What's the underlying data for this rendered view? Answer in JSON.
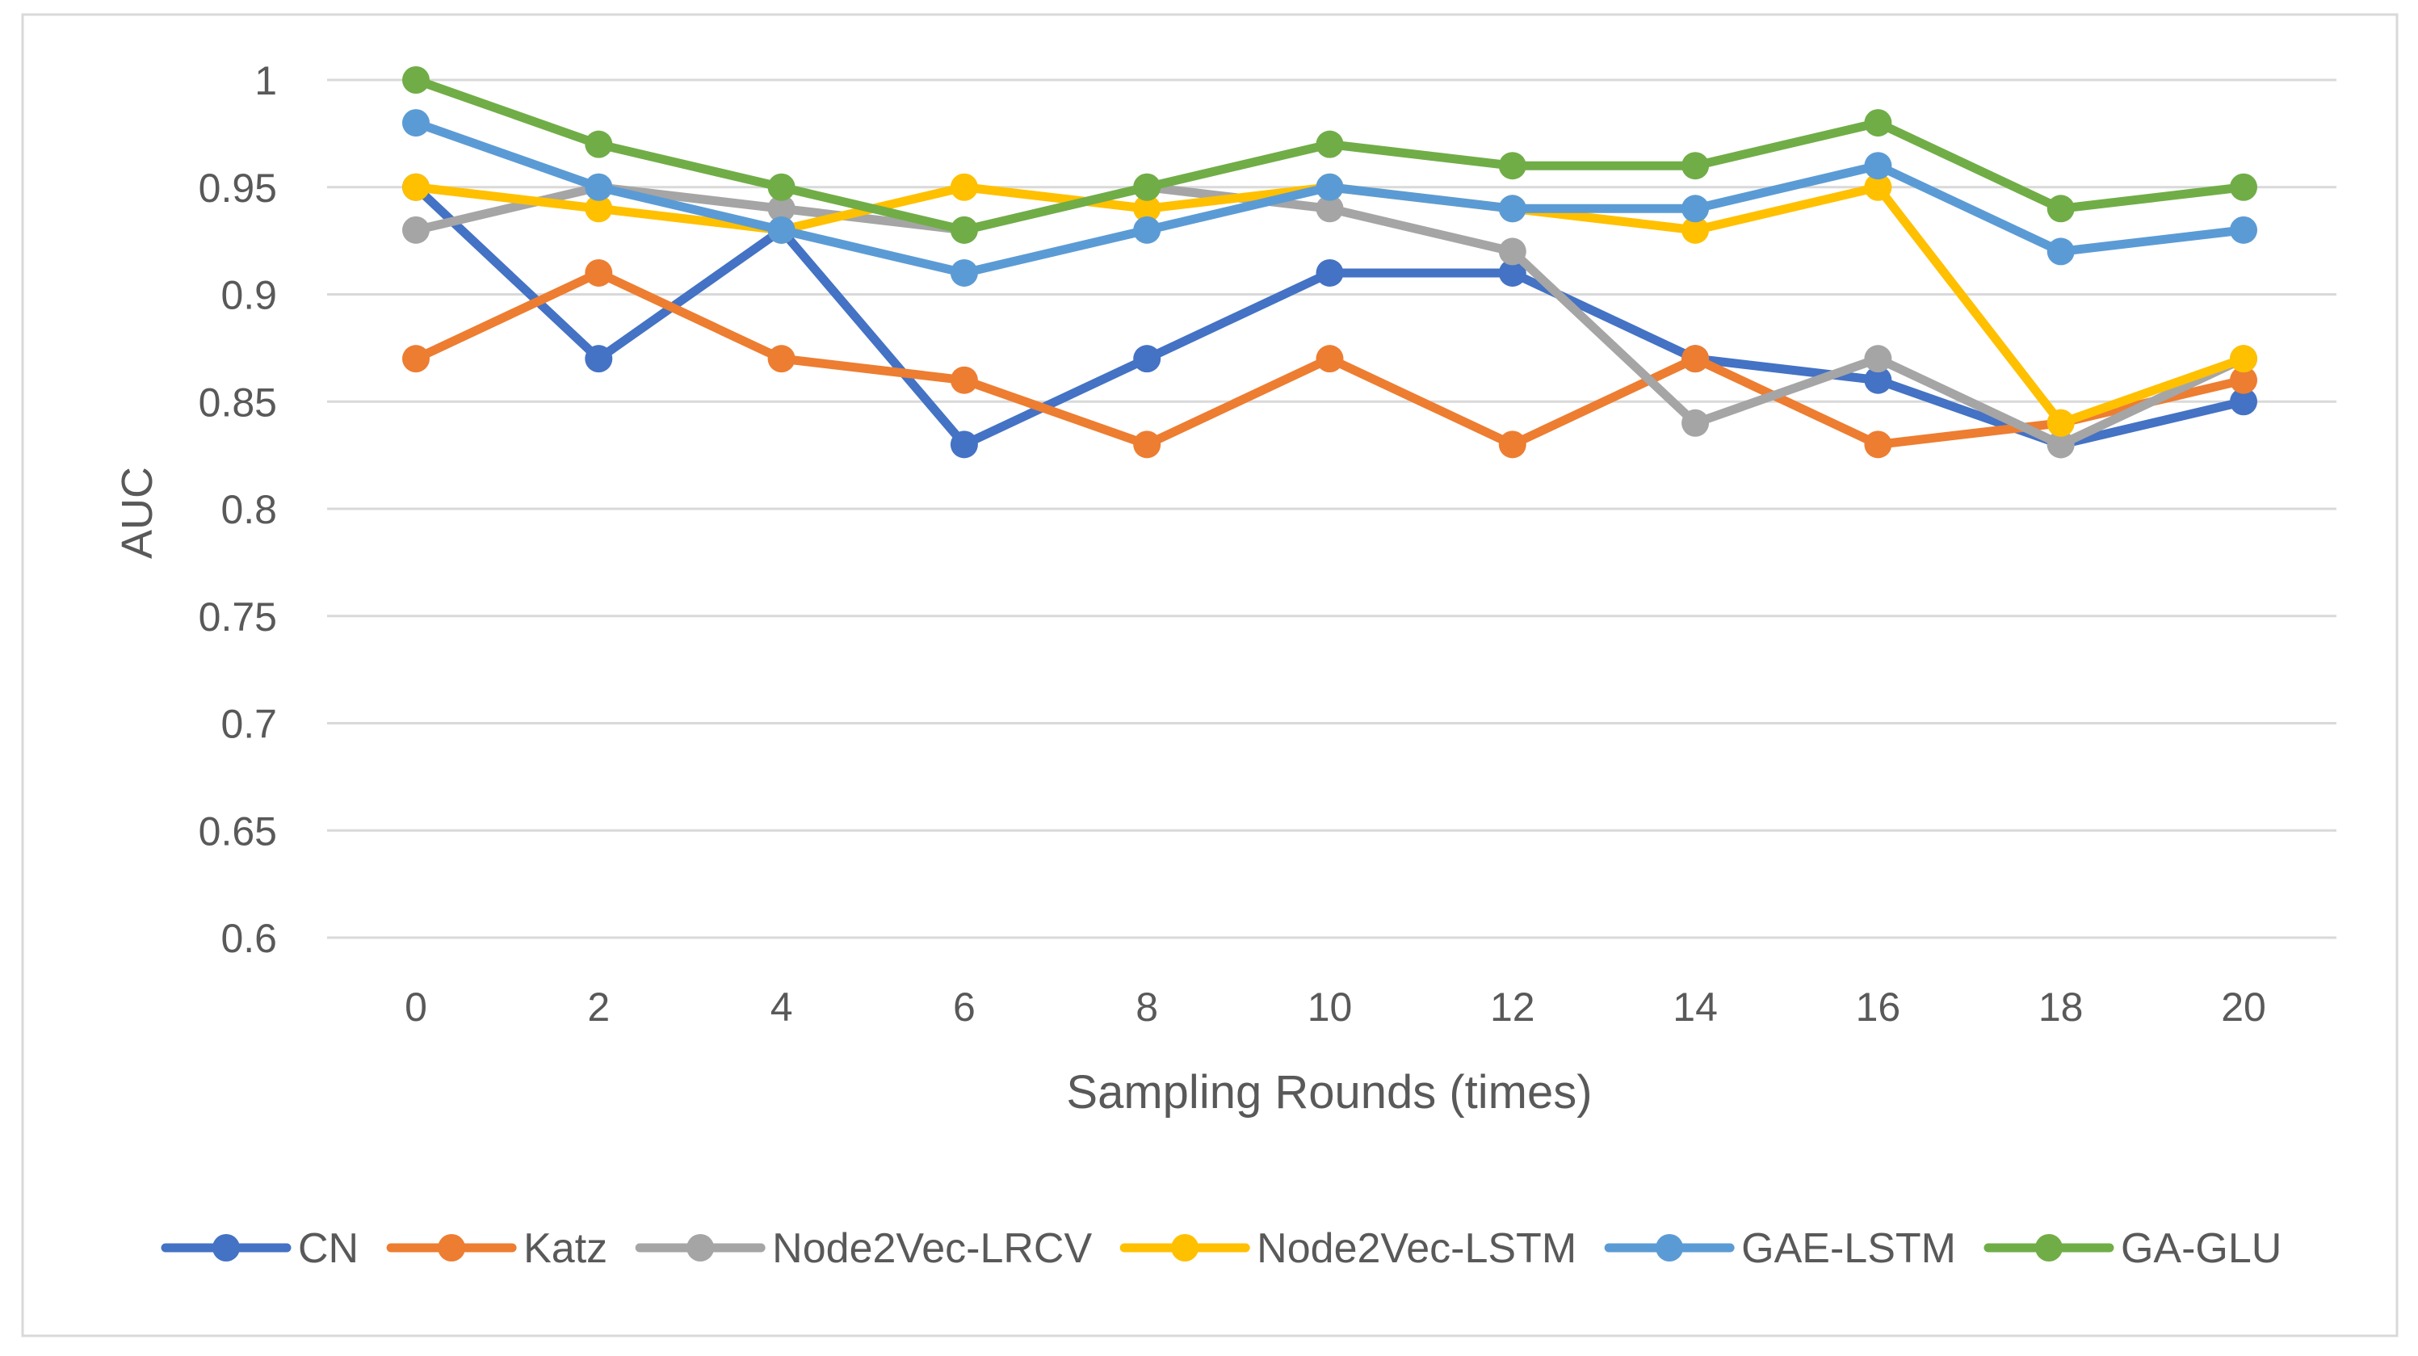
{
  "chart_data": {
    "type": "line",
    "title": "",
    "xlabel": "Sampling Rounds (times)",
    "ylabel": "AUC",
    "x": [
      0,
      2,
      4,
      6,
      8,
      10,
      12,
      14,
      16,
      18,
      20
    ],
    "x_tick_labels": [
      "0",
      "2",
      "4",
      "6",
      "8",
      "10",
      "12",
      "14",
      "16",
      "18",
      "20"
    ],
    "ylim": [
      0.6,
      1.0
    ],
    "y_ticks": [
      0.6,
      0.65,
      0.7,
      0.75,
      0.8,
      0.85,
      0.9,
      0.95,
      1.0
    ],
    "y_tick_labels": [
      "0.6",
      "0.65",
      "0.7",
      "0.75",
      "0.8",
      "0.85",
      "0.9",
      "0.95",
      "1"
    ],
    "grid": "horizontal",
    "legend_position": "bottom",
    "series": [
      {
        "name": "CN",
        "color": "#4472C4",
        "values": [
          0.95,
          0.87,
          0.93,
          0.83,
          0.87,
          0.91,
          0.91,
          0.87,
          0.86,
          0.83,
          0.85
        ]
      },
      {
        "name": "Katz",
        "color": "#ED7D31",
        "values": [
          0.87,
          0.91,
          0.87,
          0.86,
          0.83,
          0.87,
          0.83,
          0.87,
          0.83,
          0.84,
          0.86
        ]
      },
      {
        "name": "Node2Vec-LRCV",
        "color": "#A5A5A5",
        "values": [
          0.93,
          0.95,
          0.94,
          0.93,
          0.95,
          0.94,
          0.92,
          0.84,
          0.87,
          0.83,
          0.87
        ]
      },
      {
        "name": "Node2Vec-LSTM",
        "color": "#FFC000",
        "values": [
          0.95,
          0.94,
          0.93,
          0.95,
          0.94,
          0.95,
          0.94,
          0.93,
          0.95,
          0.84,
          0.87
        ]
      },
      {
        "name": "GAE-LSTM",
        "color": "#5B9BD5",
        "values": [
          0.98,
          0.95,
          0.93,
          0.91,
          0.93,
          0.95,
          0.94,
          0.94,
          0.96,
          0.92,
          0.93
        ]
      },
      {
        "name": "GA-GLU",
        "color": "#70AD47",
        "values": [
          1.0,
          0.97,
          0.95,
          0.93,
          0.95,
          0.97,
          0.96,
          0.96,
          0.98,
          0.94,
          0.95
        ]
      }
    ],
    "colors": {
      "gridline": "#D9D9D9",
      "axis_text": "#595959",
      "border": "#D9D9D9"
    }
  }
}
